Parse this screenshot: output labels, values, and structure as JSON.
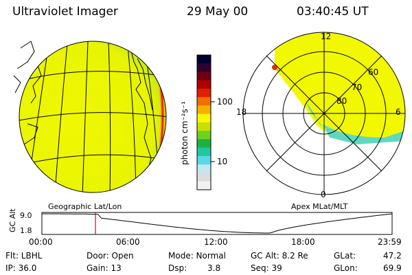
{
  "header": {
    "title": "Ultraviolet Imager",
    "date": "29 May 00",
    "time": "03:40:45 UT"
  },
  "colorbar": {
    "unit_label": "photon cm⁻²s⁻¹",
    "ticks": [
      "100",
      "10"
    ],
    "colors": [
      "#f2f2f2",
      "#dcdcdc",
      "#c0e8ee",
      "#58d8e8",
      "#20c8a0",
      "#20b040",
      "#70d020",
      "#c8e000",
      "#f8f800",
      "#f8b000",
      "#f07000",
      "#e02000",
      "#b00000",
      "#700010",
      "#300030",
      "#000030"
    ]
  },
  "map_left": {
    "caption": "Geographic Lat/Lon"
  },
  "map_right": {
    "caption": "Apex MLat/MLT",
    "mlt_labels": {
      "top": "12",
      "left": "18",
      "right": "6",
      "bottom": "0"
    },
    "lat_labels": [
      "60",
      "70",
      "80"
    ]
  },
  "altitude_plot": {
    "ylabel": "GC Alt",
    "yticks": [
      "9.0",
      "1.8"
    ],
    "xticks": [
      "00:00",
      "06:00",
      "12:00",
      "18:00",
      "23:59"
    ],
    "current_time_fraction": 0.153
  },
  "info": {
    "flt_label": "Flt: LBHL",
    "ip_label": "IP: 36.0",
    "door_label": "Door: Open",
    "gain_label": "Gain: 13",
    "mode_label": "Mode: Normal",
    "dsp_label": "Dsp:",
    "dsp_value": "3.8",
    "gcalt_label": "GC Alt: 8.2 Re",
    "seq_label": "Seq: 39",
    "glat_label": "GLat:",
    "glat_value": "47.2",
    "glon_label": "GLon:",
    "glon_value": "69.9"
  }
}
